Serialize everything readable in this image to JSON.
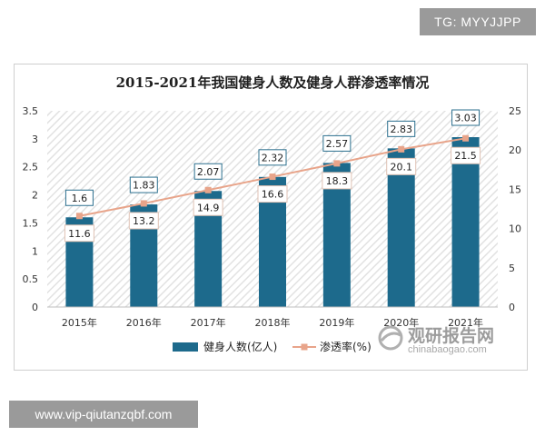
{
  "watermarks": {
    "top": "TG: MYYJJPP",
    "bottom": "www.vip-qiutanzqbf.com"
  },
  "brand": {
    "name": "观研报告网",
    "domain": "chinabaogao.com"
  },
  "chart_data": {
    "type": "bar",
    "title": "2015-2021年我国健身人数及健身人群渗透率情况",
    "categories": [
      "2015年",
      "2016年",
      "2017年",
      "2018年",
      "2019年",
      "2020年",
      "2021年"
    ],
    "series": [
      {
        "name": "健身人数(亿人)",
        "type": "bar",
        "axis": "left",
        "values": [
          1.6,
          1.83,
          2.07,
          2.32,
          2.57,
          2.83,
          3.03
        ],
        "color": "#1d6a8c"
      },
      {
        "name": "渗透率(%)",
        "type": "line",
        "axis": "right",
        "values": [
          11.6,
          13.2,
          14.9,
          16.6,
          18.3,
          20.1,
          21.5
        ],
        "color": "#e8a48a"
      }
    ],
    "y_left": {
      "min": 0,
      "max": 3.5,
      "ticks": [
        "0",
        "0.5",
        "1",
        "1.5",
        "2",
        "2.5",
        "3",
        "3.5"
      ]
    },
    "y_right": {
      "min": 0,
      "max": 25,
      "ticks": [
        "0",
        "5",
        "10",
        "15",
        "20",
        "25"
      ]
    },
    "xlabel": "",
    "ylabel": "",
    "grid": false,
    "legend_position": "bottom",
    "background_pattern": "diagonal-hatch"
  }
}
